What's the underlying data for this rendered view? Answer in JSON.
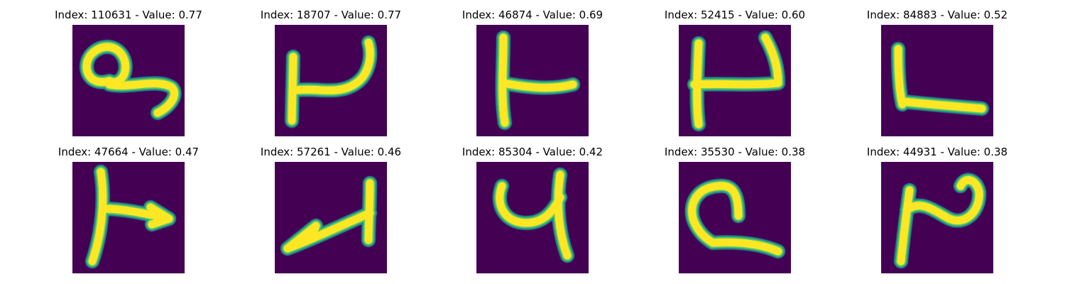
{
  "colors": {
    "background": "#440154",
    "stroke_edge": "#21918c",
    "stroke_mid": "#5ec962",
    "stroke_core": "#fde725"
  },
  "panels": [
    {
      "title": "Index: 110631 - Value: 0.77"
    },
    {
      "title": "Index: 18707 - Value: 0.77"
    },
    {
      "title": "Index: 46874 - Value: 0.69"
    },
    {
      "title": "Index: 52415 - Value: 0.60"
    },
    {
      "title": "Index: 84883 - Value: 0.52"
    },
    {
      "title": "Index: 47664 - Value: 0.47"
    },
    {
      "title": "Index: 57261 - Value: 0.46"
    },
    {
      "title": "Index: 85304 - Value: 0.42"
    },
    {
      "title": "Index: 35530 - Value: 0.38"
    },
    {
      "title": "Index: 44931 - Value: 0.38"
    }
  ]
}
